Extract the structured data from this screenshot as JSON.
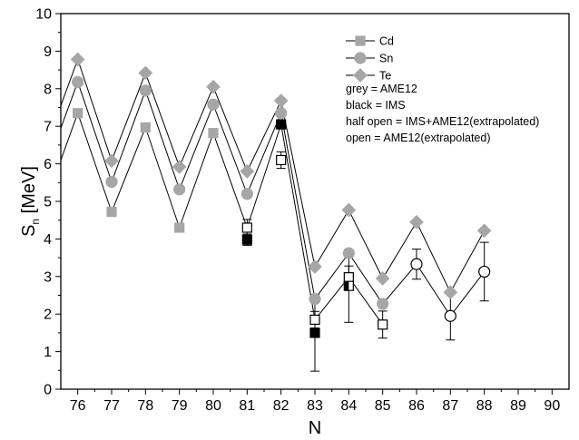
{
  "chart_data": {
    "type": "line",
    "xlabel": "N",
    "ylabel_main": "S",
    "ylabel_sub": "n",
    "ylabel_unit": " [MeV]",
    "xlim": [
      75.5,
      90.5
    ],
    "ylim": [
      0,
      10
    ],
    "x_ticks": [
      76,
      77,
      78,
      79,
      80,
      81,
      82,
      83,
      84,
      85,
      86,
      87,
      88,
      89,
      90
    ],
    "y_ticks": [
      0,
      1,
      2,
      3,
      4,
      5,
      6,
      7,
      8,
      9,
      10
    ],
    "grid": false,
    "legend_position": "top-right",
    "colors": {
      "grey": "#a6a6a6",
      "black": "#000000",
      "line": "#000000"
    },
    "series": [
      {
        "name": "Cd",
        "marker": "square",
        "line": [
          [
            75.5,
            6.1
          ],
          [
            76,
            7.35
          ],
          [
            77,
            4.72
          ],
          [
            78,
            6.97
          ],
          [
            79,
            4.3
          ],
          [
            80,
            6.82
          ],
          [
            81,
            4.3
          ],
          [
            82,
            7.05
          ],
          [
            83,
            1.85
          ],
          [
            84,
            2.98
          ],
          [
            85,
            1.72
          ]
        ],
        "points": [
          {
            "x": 76,
            "y": 7.35,
            "style": "grey"
          },
          {
            "x": 77,
            "y": 4.72,
            "style": "grey"
          },
          {
            "x": 78,
            "y": 6.97,
            "style": "grey"
          },
          {
            "x": 79,
            "y": 4.3,
            "style": "grey"
          },
          {
            "x": 80,
            "y": 6.82,
            "style": "grey"
          },
          {
            "x": 81,
            "y": 4.3,
            "style": "open",
            "err": 0.22
          },
          {
            "x": 81,
            "y": 3.98,
            "style": "black",
            "err": 0.15
          },
          {
            "x": 82,
            "y": 6.1,
            "style": "open",
            "err": 0.22
          },
          {
            "x": 82,
            "y": 7.05,
            "style": "black"
          },
          {
            "x": 83,
            "y": 1.85,
            "style": "open",
            "err": 0.22
          },
          {
            "x": 83,
            "y": 1.5,
            "style": "black",
            "err": 1.02
          },
          {
            "x": 84,
            "y": 2.98,
            "style": "open",
            "err": 0.3
          },
          {
            "x": 84,
            "y": 2.75,
            "style": "half",
            "err": 0.97
          },
          {
            "x": 85,
            "y": 1.72,
            "style": "open",
            "err": 0.36
          }
        ]
      },
      {
        "name": "Sn",
        "marker": "circle",
        "line": [
          [
            75.5,
            6.95
          ],
          [
            76,
            8.18
          ],
          [
            77,
            5.52
          ],
          [
            78,
            7.95
          ],
          [
            79,
            5.32
          ],
          [
            80,
            7.58
          ],
          [
            81,
            5.2
          ],
          [
            82,
            7.35
          ],
          [
            83,
            2.4
          ],
          [
            84,
            3.62
          ],
          [
            85,
            2.27
          ],
          [
            86,
            3.33
          ],
          [
            87,
            1.95
          ],
          [
            88,
            3.13
          ]
        ],
        "points": [
          {
            "x": 76,
            "y": 8.18,
            "style": "grey"
          },
          {
            "x": 77,
            "y": 5.52,
            "style": "grey"
          },
          {
            "x": 78,
            "y": 7.95,
            "style": "grey"
          },
          {
            "x": 79,
            "y": 5.32,
            "style": "grey"
          },
          {
            "x": 80,
            "y": 7.58,
            "style": "grey"
          },
          {
            "x": 81,
            "y": 5.2,
            "style": "grey"
          },
          {
            "x": 82,
            "y": 7.35,
            "style": "grey"
          },
          {
            "x": 83,
            "y": 2.4,
            "style": "grey"
          },
          {
            "x": 84,
            "y": 3.62,
            "style": "grey"
          },
          {
            "x": 85,
            "y": 2.27,
            "style": "grey"
          },
          {
            "x": 86,
            "y": 3.33,
            "style": "open",
            "err": 0.4
          },
          {
            "x": 87,
            "y": 1.95,
            "style": "open",
            "err": 0.64
          },
          {
            "x": 88,
            "y": 3.13,
            "style": "open",
            "err": 0.78
          }
        ]
      },
      {
        "name": "Te",
        "marker": "diamond",
        "line": [
          [
            75.5,
            7.55
          ],
          [
            76,
            8.78
          ],
          [
            77,
            6.08
          ],
          [
            78,
            8.42
          ],
          [
            79,
            5.92
          ],
          [
            80,
            8.05
          ],
          [
            81,
            5.8
          ],
          [
            82,
            7.68
          ],
          [
            83,
            3.26
          ],
          [
            84,
            4.77
          ],
          [
            85,
            2.95
          ],
          [
            86,
            4.45
          ],
          [
            87,
            2.58
          ],
          [
            88,
            4.22
          ]
        ],
        "points": [
          {
            "x": 76,
            "y": 8.78,
            "style": "grey"
          },
          {
            "x": 77,
            "y": 6.08,
            "style": "grey"
          },
          {
            "x": 78,
            "y": 8.42,
            "style": "grey"
          },
          {
            "x": 79,
            "y": 5.92,
            "style": "grey"
          },
          {
            "x": 80,
            "y": 8.05,
            "style": "grey"
          },
          {
            "x": 81,
            "y": 5.8,
            "style": "grey"
          },
          {
            "x": 82,
            "y": 7.68,
            "style": "grey"
          },
          {
            "x": 83,
            "y": 3.26,
            "style": "grey"
          },
          {
            "x": 84,
            "y": 4.77,
            "style": "grey"
          },
          {
            "x": 85,
            "y": 2.95,
            "style": "grey"
          },
          {
            "x": 86,
            "y": 4.45,
            "style": "grey"
          },
          {
            "x": 87,
            "y": 2.58,
            "style": "grey"
          },
          {
            "x": 88,
            "y": 4.22,
            "style": "grey"
          }
        ]
      }
    ],
    "legend": {
      "series_labels": [
        "Cd",
        "Sn",
        "Te"
      ],
      "notes": [
        {
          "text": "grey = AME12",
          "color": "#a6a6a6"
        },
        {
          "text": "black = IMS",
          "color": "#000000"
        },
        {
          "text": "half open = IMS+AME12(extrapolated)",
          "color": "#000000"
        },
        {
          "text": "open = AME12(extrapolated)",
          "color": "#000000"
        }
      ]
    }
  }
}
